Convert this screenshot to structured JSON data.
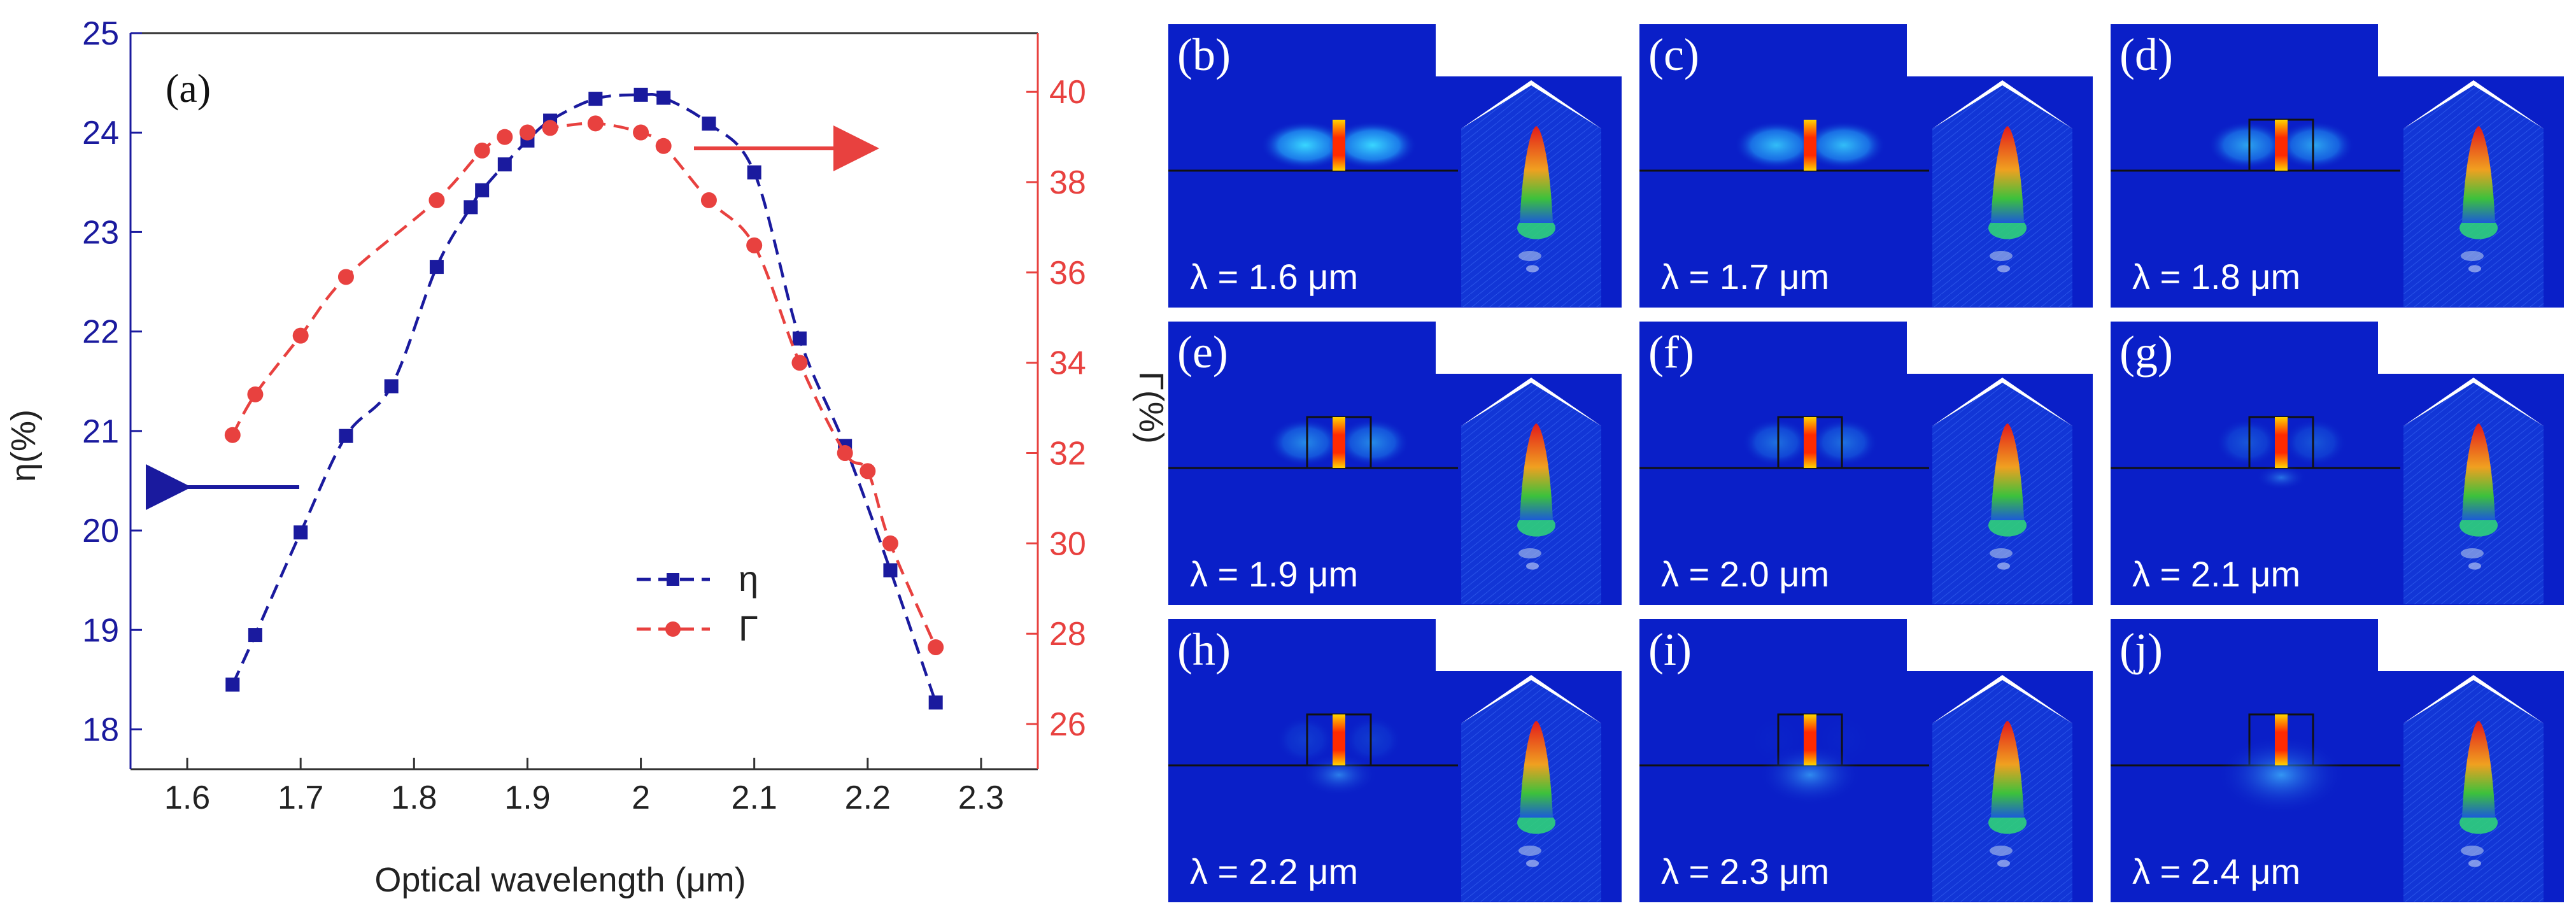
{
  "chart_data": {
    "type": "line",
    "panel_label": "(a)",
    "xlabel": "Optical wavelength (μm)",
    "ylabel_left": "η(%)",
    "ylabel_right": "Γ(%)",
    "xlim": [
      1.55,
      2.35
    ],
    "ylim_left": [
      17.6,
      25
    ],
    "ylim_right": [
      25,
      41.3
    ],
    "x_ticks": [
      "1.6",
      "1.7",
      "1.8",
      "1.9",
      "2",
      "2.1",
      "2.2",
      "2.3"
    ],
    "y_left_ticks": [
      "18",
      "19",
      "20",
      "21",
      "22",
      "23",
      "24",
      "25"
    ],
    "y_right_ticks": [
      "26",
      "28",
      "30",
      "32",
      "34",
      "36",
      "38",
      "40"
    ],
    "series": [
      {
        "name": "η",
        "axis": "left",
        "color": "#1a1a9e",
        "marker": "square",
        "x": [
          1.64,
          1.66,
          1.7,
          1.74,
          1.78,
          1.82,
          1.85,
          1.86,
          1.88,
          1.9,
          1.92,
          1.96,
          2.0,
          2.02,
          2.06,
          2.1,
          2.14,
          2.18,
          2.22,
          2.26
        ],
        "y": [
          18.45,
          18.95,
          19.98,
          20.95,
          21.45,
          22.65,
          23.25,
          23.42,
          23.68,
          23.92,
          24.12,
          24.34,
          24.38,
          24.35,
          24.09,
          23.6,
          21.93,
          20.85,
          19.6,
          18.27
        ]
      },
      {
        "name": "Γ",
        "axis": "right",
        "color": "#e8413f",
        "marker": "circle",
        "x": [
          1.64,
          1.66,
          1.7,
          1.74,
          1.82,
          1.86,
          1.88,
          1.9,
          1.92,
          1.96,
          2.0,
          2.02,
          2.06,
          2.1,
          2.14,
          2.18,
          2.2,
          2.22,
          2.26
        ],
        "y": [
          32.4,
          33.3,
          34.6,
          35.9,
          37.6,
          38.7,
          39.0,
          39.1,
          39.2,
          39.3,
          39.1,
          38.8,
          37.6,
          36.6,
          34.0,
          32.0,
          31.6,
          30.0,
          27.7
        ]
      }
    ],
    "legend": [
      "η",
      "Γ"
    ],
    "legend_position": "lower-right"
  },
  "panels": [
    {
      "label": "(b)",
      "wavelength": "λ = 1.6 μm"
    },
    {
      "label": "(c)",
      "wavelength": "λ = 1.7 μm"
    },
    {
      "label": "(d)",
      "wavelength": "λ = 1.8 μm"
    },
    {
      "label": "(e)",
      "wavelength": "λ = 1.9 μm"
    },
    {
      "label": "(f)",
      "wavelength": "λ = 2.0 μm"
    },
    {
      "label": "(g)",
      "wavelength": "λ = 2.1 μm"
    },
    {
      "label": "(h)",
      "wavelength": "λ = 2.2 μm"
    },
    {
      "label": "(i)",
      "wavelength": "λ = 2.3 μm"
    },
    {
      "label": "(j)",
      "wavelength": "λ = 2.4 μm"
    }
  ],
  "colors": {
    "eta": "#1a1a9e",
    "gamma": "#e8413f",
    "field_bg": "#0a1fc8"
  }
}
